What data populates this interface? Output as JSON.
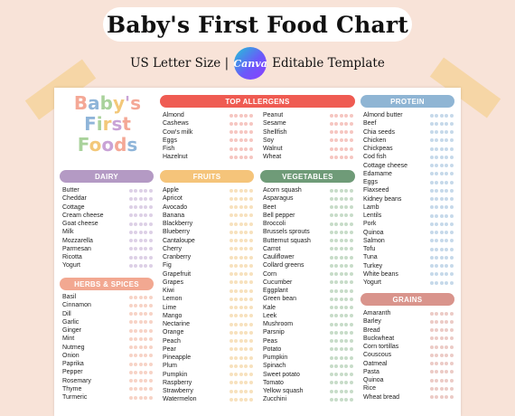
{
  "title": "Baby's First Food Chart",
  "subtitle_left": "US Letter Size |",
  "canva_logo": "Canva",
  "subtitle_right": "Editable Template",
  "logo_lines": [
    [
      {
        "t": "B",
        "c": "c1"
      },
      {
        "t": "a",
        "c": "c2"
      },
      {
        "t": "b",
        "c": "c3"
      },
      {
        "t": "y",
        "c": "c4"
      },
      {
        "t": "'",
        "c": "c5"
      },
      {
        "t": "s",
        "c": "c1"
      }
    ],
    [
      {
        "t": "F",
        "c": "c2"
      },
      {
        "t": "i",
        "c": "c3"
      },
      {
        "t": "r",
        "c": "c4"
      },
      {
        "t": "s",
        "c": "c5"
      },
      {
        "t": "t",
        "c": "c1"
      }
    ],
    [
      {
        "t": "F",
        "c": "c3"
      },
      {
        "t": "o",
        "c": "c4"
      },
      {
        "t": "o",
        "c": "c5"
      },
      {
        "t": "d",
        "c": "c1"
      },
      {
        "t": "s",
        "c": "c2"
      }
    ]
  ],
  "sections": {
    "top_allergens": {
      "label": "TOP ALLERGENS",
      "color": "#ef5b52",
      "dot": "#f6c6c1",
      "col1": [
        "Almond",
        "Cashews",
        "Cow's milk",
        "Eggs",
        "Fish",
        "Hazelnut"
      ],
      "col2": [
        "Peanut",
        "Sesame",
        "Shellfish",
        "Soy",
        "Walnut",
        "Wheat"
      ]
    },
    "protein": {
      "label": "PROTEIN",
      "color": "#8fb5d4",
      "dot": "#c6d9ea",
      "items": [
        "Almond butter",
        "Beef",
        "Chia seeds",
        "Chicken",
        "Chickpeas",
        "Cod fish",
        "Cottage cheese",
        "Edamame",
        "Eggs",
        "Flaxseed",
        "Kidney beans",
        "Lamb",
        "Lentils",
        "Pork",
        "Quinoa",
        "Salmon",
        "Tofu",
        "Tuna",
        "Turkey",
        "White beans",
        "Yogurt"
      ]
    },
    "dairy": {
      "label": "DAIRY",
      "color": "#b49ac4",
      "dot": "#ddd0e6",
      "items": [
        "Butter",
        "Cheddar",
        "Cottage",
        "Cream cheese",
        "Goat cheese",
        "Milk",
        "Mozzarella",
        "Parmesan",
        "Ricotta",
        "Yogurt"
      ]
    },
    "fruits": {
      "label": "FRUITS",
      "color": "#f5c47a",
      "dot": "#f7e1bd",
      "items": [
        "Apple",
        "Apricot",
        "Avocado",
        "Banana",
        "Blackberry",
        "Blueberry",
        "Cantaloupe",
        "Cherry",
        "Cranberry",
        "Fig",
        "Grapefruit",
        "Grapes",
        "Kiwi",
        "Lemon",
        "Lime",
        "Mango",
        "Nectarine",
        "Orange",
        "Peach",
        "Pear",
        "Pineapple",
        "Plum",
        "Pumpkin",
        "Raspberry",
        "Strawberry",
        "Watermelon"
      ]
    },
    "vegetables": {
      "label": "VEGETABLES",
      "color": "#6f9b78",
      "dot": "#c7dcc8",
      "items": [
        "Acorn squash",
        "Asparagus",
        "Beet",
        "Bell pepper",
        "Broccoli",
        "Brussels sprouts",
        "Butternut squash",
        "Carrot",
        "Cauliflower",
        "Collard greens",
        "Corn",
        "Cucumber",
        "Eggplant",
        "Green bean",
        "Kale",
        "Leek",
        "Mushroom",
        "Parsnip",
        "Peas",
        "Potato",
        "Pumpkin",
        "Spinach",
        "Sweet potato",
        "Tomato",
        "Yellow squash",
        "Zucchini"
      ]
    },
    "herbs": {
      "label": "HERBS & SPICES",
      "color": "#f2a891",
      "dot": "#f7d3c6",
      "items": [
        "Basil",
        "Cinnamon",
        "Dill",
        "Garlic",
        "Ginger",
        "Mint",
        "Nutmeg",
        "Onion",
        "Paprika",
        "Pepper",
        "Rosemary",
        "Thyme",
        "Turmeric"
      ]
    },
    "grains": {
      "label": "GRAINS",
      "color": "#d9948c",
      "dot": "#eccbc6",
      "items": [
        "Amaranth",
        "Barley",
        "Bread",
        "Buckwheat",
        "Corn tortillas",
        "Couscous",
        "Oatmeal",
        "Pasta",
        "Quinoa",
        "Rice",
        "Wheat bread"
      ]
    }
  }
}
